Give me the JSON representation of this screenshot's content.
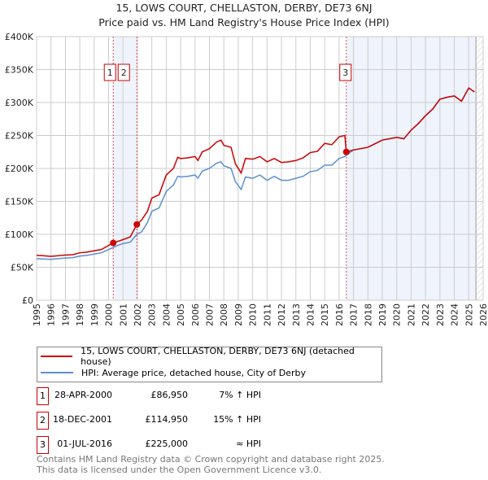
{
  "chart_data": {
    "type": "line",
    "title": "15, LOWS COURT, CHELLASTON, DERBY, DE73 6NJ",
    "subtitle": "Price paid vs. HM Land Registry's House Price Index (HPI)",
    "xlim": [
      1995,
      2026
    ],
    "ylim": [
      0,
      400000
    ],
    "yticks": [
      {
        "v": 0,
        "label": "£0"
      },
      {
        "v": 50000,
        "label": "£50K"
      },
      {
        "v": 100000,
        "label": "£100K"
      },
      {
        "v": 150000,
        "label": "£150K"
      },
      {
        "v": 200000,
        "label": "£200K"
      },
      {
        "v": 250000,
        "label": "£250K"
      },
      {
        "v": 300000,
        "label": "£300K"
      },
      {
        "v": 350000,
        "label": "£350K"
      },
      {
        "v": 400000,
        "label": "£400K"
      }
    ],
    "xticks": [
      "1995",
      "1996",
      "1997",
      "1998",
      "1999",
      "2000",
      "2001",
      "2002",
      "2003",
      "2004",
      "2005",
      "2006",
      "2007",
      "2008",
      "2009",
      "2010",
      "2011",
      "2012",
      "2013",
      "2014",
      "2015",
      "2016",
      "2017",
      "2018",
      "2019",
      "2020",
      "2021",
      "2022",
      "2023",
      "2024",
      "2025",
      "2026"
    ],
    "grid": true,
    "colors": {
      "property": "#cc0000",
      "hpi": "#5b8fd0",
      "shade": "#eef3fc"
    },
    "series": [
      {
        "name": "15, LOWS COURT, CHELLASTON, DERBY, DE73 6NJ (detached house)",
        "key": "property",
        "x": [
          1995,
          1995.5,
          1996,
          1997,
          1997.5,
          1998,
          1998.5,
          1999,
          1999.5,
          2000,
          2000.32,
          2000.6,
          2001,
          2001.5,
          2001.96,
          2002.3,
          2002.7,
          2003,
          2003.5,
          2004,
          2004.5,
          2004.8,
          2005,
          2005.5,
          2006,
          2006.2,
          2006.5,
          2007,
          2007.5,
          2007.8,
          2008,
          2008.5,
          2008.8,
          2009.2,
          2009.5,
          2010,
          2010.5,
          2011,
          2011.5,
          2012,
          2012.5,
          2013,
          2013.5,
          2014,
          2014.5,
          2015,
          2015.5,
          2016,
          2016.4,
          2016.5,
          2017,
          2018,
          2019,
          2020,
          2020.5,
          2021,
          2021.5,
          2022,
          2022.5,
          2023,
          2023.5,
          2024,
          2024.5,
          2025,
          2025.4
        ],
        "y": [
          68000,
          67500,
          66500,
          68500,
          69000,
          72000,
          73000,
          75000,
          77000,
          83000,
          86950,
          89000,
          92000,
          96000,
          114950,
          122000,
          135000,
          155000,
          160000,
          190000,
          200000,
          217000,
          215000,
          216000,
          218000,
          212000,
          225000,
          230000,
          240000,
          243000,
          235000,
          232000,
          207000,
          193000,
          215000,
          214000,
          218000,
          210000,
          215000,
          209000,
          210000,
          212000,
          216000,
          224000,
          226000,
          238000,
          236000,
          248000,
          250000,
          225000,
          228000,
          232000,
          243000,
          247000,
          245000,
          258000,
          268000,
          280000,
          290000,
          305000,
          308000,
          310000,
          302000,
          322000,
          316000
        ]
      },
      {
        "name": "HPI: Average price, detached house, City of Derby",
        "key": "hpi",
        "x": [
          1995,
          1995.5,
          1996,
          1997,
          1997.5,
          1998,
          1998.5,
          1999,
          1999.5,
          2000,
          2000.32,
          2000.6,
          2001,
          2001.5,
          2001.96,
          2002.3,
          2002.7,
          2003,
          2003.5,
          2004,
          2004.5,
          2004.8,
          2005,
          2005.5,
          2006,
          2006.2,
          2006.5,
          2007,
          2007.5,
          2007.8,
          2008,
          2008.5,
          2008.8,
          2009.2,
          2009.5,
          2010,
          2010.5,
          2011,
          2011.5,
          2012,
          2012.5,
          2013,
          2013.5,
          2014,
          2014.5,
          2015,
          2015.5,
          2016,
          2016.4,
          2016.5,
          2017,
          2018,
          2019,
          2020,
          2020.5,
          2021,
          2021.5,
          2022,
          2022.5,
          2023,
          2023.5,
          2024,
          2024.5,
          2025,
          2025.4
        ],
        "y": [
          63000,
          62500,
          62000,
          64000,
          64500,
          67000,
          68000,
          70000,
          72000,
          77000,
          80000,
          83000,
          86000,
          88000,
          100000,
          104000,
          118000,
          135000,
          140000,
          165000,
          175000,
          188000,
          187000,
          188000,
          190000,
          185000,
          196000,
          200000,
          208000,
          210000,
          204000,
          200000,
          180000,
          168000,
          187000,
          185000,
          190000,
          182000,
          188000,
          182000,
          182000,
          185000,
          188000,
          195000,
          197000,
          205000,
          205000,
          215000,
          218000,
          220000,
          228000,
          232000,
          243000,
          247000,
          245000,
          258000,
          268000,
          280000,
          290000,
          305000,
          308000,
          310000,
          302000,
          322000,
          316000
        ]
      }
    ],
    "sales": [
      {
        "id": "1",
        "date": "28-APR-2000",
        "x": 2000.32,
        "price": 86950,
        "price_label": "£86,950",
        "hpi_label": "7% ↑ HPI"
      },
      {
        "id": "2",
        "date": "18-DEC-2001",
        "x": 2001.96,
        "price": 114950,
        "price_label": "£114,950",
        "hpi_label": "15% ↑ HPI"
      },
      {
        "id": "3",
        "date": "01-JUL-2016",
        "x": 2016.5,
        "price": 225000,
        "price_label": "£225,000",
        "hpi_label": "≈ HPI"
      }
    ],
    "forecast_start": 2025.5
  },
  "footer": {
    "line1": "Contains HM Land Registry data © Crown copyright and database right 2025.",
    "line2": "This data is licensed under the Open Government Licence v3.0."
  }
}
